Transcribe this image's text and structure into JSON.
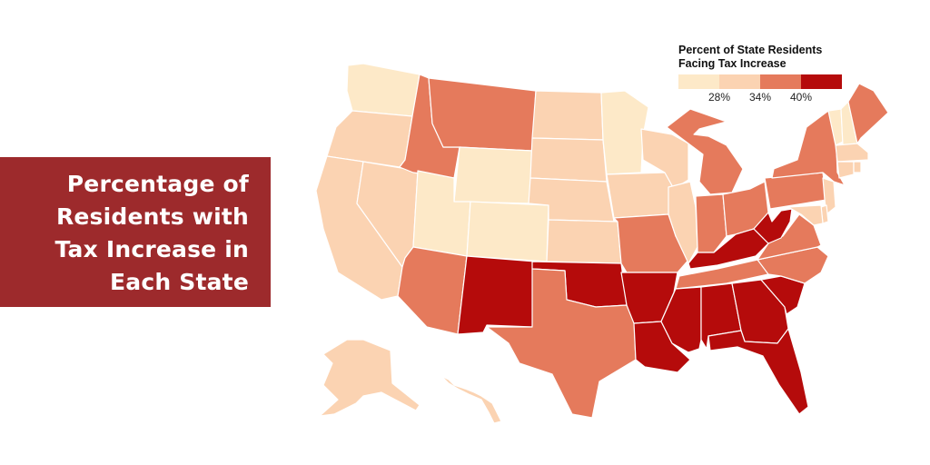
{
  "title": {
    "lines": [
      "Percentage of",
      "Residents with",
      "Tax Increase in",
      "Each State"
    ]
  },
  "legend": {
    "title_lines": [
      "Percent of State Residents",
      "Facing Tax Increase"
    ],
    "ticks": [
      "28%",
      "34%",
      "40%"
    ],
    "colors": [
      "#fde9c8",
      "#fbd3b2",
      "#e57a5c",
      "#b50b0b"
    ]
  },
  "map_data": {
    "bins": [
      "< 28%",
      "28–34%",
      "34–40%",
      "> 40%"
    ],
    "states": {
      "WA": 0,
      "OR": 1,
      "CA": 1,
      "NV": 1,
      "ID": 2,
      "MT": 2,
      "WY": 0,
      "UT": 0,
      "CO": 0,
      "AZ": 2,
      "NM": 3,
      "ND": 1,
      "SD": 1,
      "NE": 1,
      "KS": 1,
      "OK": 3,
      "TX": 2,
      "MN": 0,
      "IA": 1,
      "MO": 2,
      "AR": 3,
      "LA": 3,
      "WI": 1,
      "IL": 1,
      "MI": 2,
      "IN": 2,
      "OH": 2,
      "KY": 3,
      "TN": 2,
      "MS": 3,
      "AL": 3,
      "GA": 3,
      "FL": 3,
      "SC": 3,
      "NC": 2,
      "VA": 2,
      "WV": 3,
      "PA": 2,
      "NY": 2,
      "ME": 2,
      "VT": 0,
      "NH": 0,
      "MA": 1,
      "CT": 1,
      "RI": 1,
      "NJ": 1,
      "DE": 1,
      "MD": 1,
      "AK": 1,
      "HI": 1
    }
  }
}
